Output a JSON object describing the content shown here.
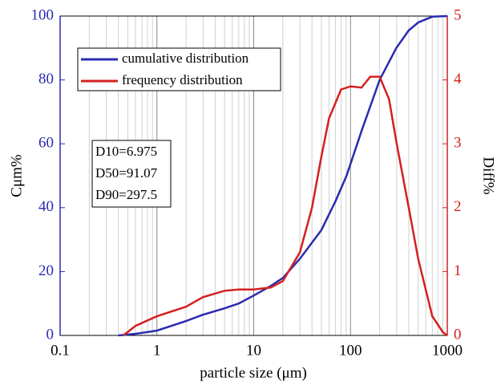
{
  "chart_data": {
    "type": "line",
    "xlabel": "particle size (μm)",
    "ylabel": "Cμm%",
    "y2label": "Diff%",
    "xscale": "log",
    "xlim": [
      0.1,
      1000
    ],
    "xticks": [
      0.1,
      1,
      10,
      100,
      1000
    ],
    "ylim": [
      0,
      100
    ],
    "yticks": [
      0,
      20,
      40,
      60,
      80,
      100
    ],
    "y2lim": [
      0,
      5
    ],
    "y2ticks": [
      0,
      1,
      2,
      3,
      4,
      5
    ],
    "grid": true,
    "legend": "upper left",
    "annotations": [
      "D10=6.975",
      "D50=91.07",
      "D90=297.5"
    ],
    "series": [
      {
        "name": "cumulative distribution",
        "color": "#2b2bb0",
        "x": [
          0.4,
          0.6,
          1,
          2,
          3,
          5,
          7,
          10,
          15,
          20,
          30,
          50,
          70,
          91.07,
          130,
          200,
          297.5,
          400,
          500,
          700,
          1000
        ],
        "values": [
          0,
          0.5,
          1.5,
          4.5,
          6.5,
          8.5,
          10,
          12.5,
          15.5,
          18,
          24,
          33,
          42,
          50,
          64,
          80,
          90,
          95.5,
          98,
          99.8,
          100
        ]
      },
      {
        "name": "frequency distribution",
        "color": "#d42020",
        "axis": "y2",
        "x": [
          0.45,
          0.6,
          1,
          2,
          3,
          5,
          7,
          10,
          15,
          20,
          30,
          40,
          50,
          60,
          80,
          100,
          130,
          160,
          200,
          250,
          300,
          400,
          500,
          700,
          900,
          1000
        ],
        "values": [
          0,
          0.15,
          0.3,
          0.45,
          0.6,
          0.7,
          0.72,
          0.72,
          0.75,
          0.85,
          1.3,
          2,
          2.8,
          3.4,
          3.85,
          3.9,
          3.88,
          4.05,
          4.05,
          3.7,
          3.0,
          2.0,
          1.2,
          0.3,
          0.05,
          0
        ]
      }
    ]
  }
}
